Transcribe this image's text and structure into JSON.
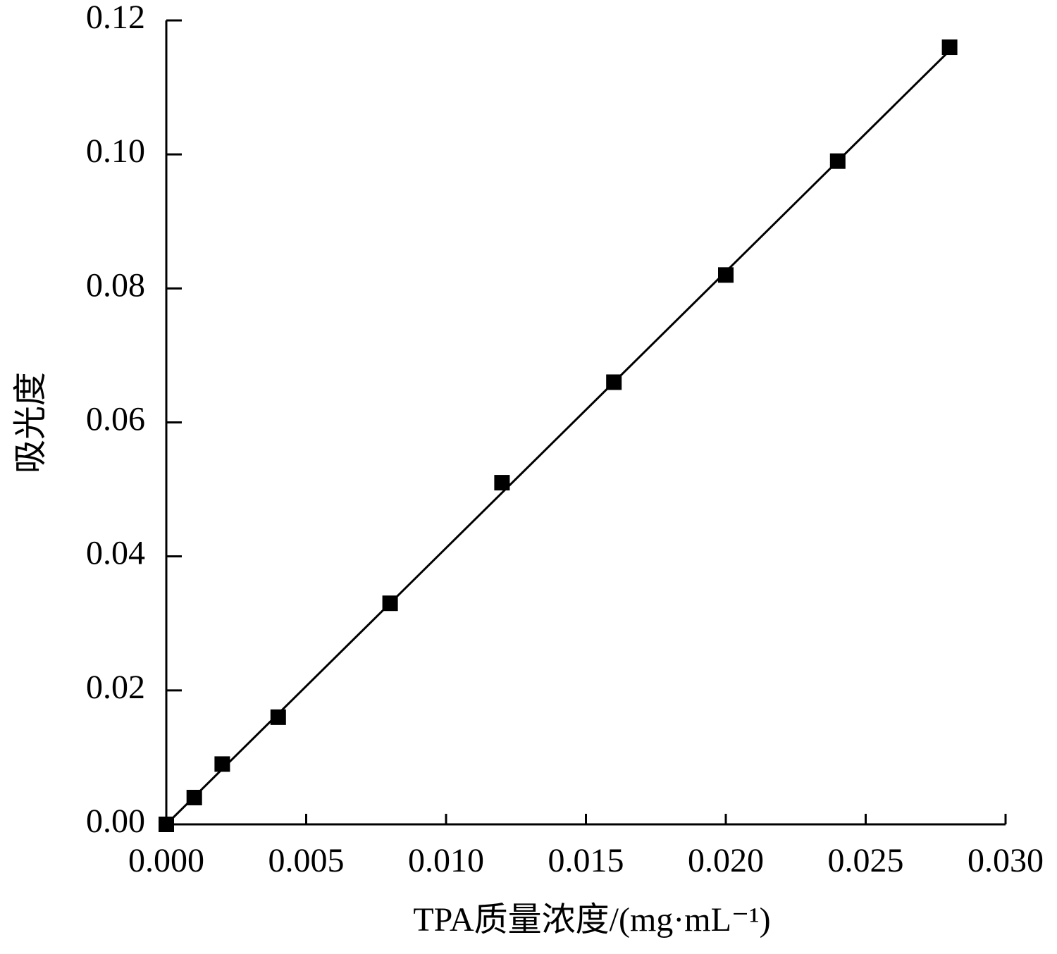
{
  "chart_data": {
    "type": "scatter",
    "x_label": "TPA质量浓度/(mg·mL⁻¹)",
    "y_label": "吸光度",
    "color": "#000000",
    "series": [
      {
        "x": [
          0,
          0.001,
          0.002,
          0.004,
          0.008,
          0.012,
          0.016,
          0.02,
          0.024,
          0.028
        ],
        "values": [
          0,
          0.004,
          0.009,
          0.016,
          0.033,
          0.051,
          0.066,
          0.082,
          0.099,
          0.116
        ],
        "marker": "square"
      },
      {
        "x": [
          0,
          0.028
        ],
        "values": [
          0,
          0.1155
        ],
        "line": true
      }
    ],
    "xlim": [
      0,
      0.03
    ],
    "ylim": [
      0,
      0.12
    ],
    "xticks": [
      {
        "value": 0,
        "label": "0.000"
      },
      {
        "value": 0.005,
        "label": "0.005"
      },
      {
        "value": 0.01,
        "label": "0.010"
      },
      {
        "value": 0.015,
        "label": "0.015"
      },
      {
        "value": 0.02,
        "label": "0.020"
      },
      {
        "value": 0.025,
        "label": "0.025"
      },
      {
        "value": 0.03,
        "label": "0.030"
      }
    ],
    "yticks": [
      {
        "value": 0,
        "label": "0.00"
      },
      {
        "value": 0.02,
        "label": "0.02"
      },
      {
        "value": 0.04,
        "label": "0.04"
      },
      {
        "value": 0.06,
        "label": "0.06"
      },
      {
        "value": 0.08,
        "label": "0.08"
      },
      {
        "value": 0.1,
        "label": "0.10"
      },
      {
        "value": 0.12,
        "label": "0.12"
      }
    ],
    "grid": false
  }
}
